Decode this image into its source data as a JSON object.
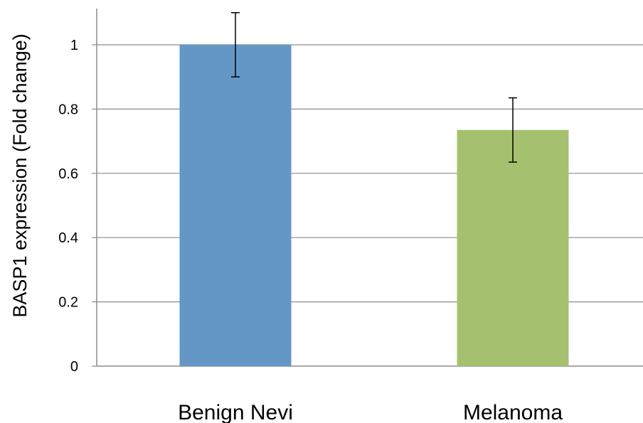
{
  "chart_data": {
    "type": "bar",
    "title": "",
    "xlabel": "",
    "ylabel": "BASP1 expression (Fold change)",
    "categories": [
      "Benign Nevi",
      "Melanoma"
    ],
    "values": [
      1.0,
      0.735
    ],
    "error": [
      0.1,
      0.1
    ],
    "colors": [
      "#6497c6",
      "#a5c170"
    ],
    "ylim": [
      0,
      1.1
    ],
    "yticks": [
      0,
      0.2,
      0.4,
      0.6,
      0.8,
      1
    ],
    "ytick_labels": [
      "0",
      "0.2",
      "0.4",
      "0.6",
      "0.8",
      "1"
    ],
    "grid": "horizontal",
    "legend": "none"
  }
}
